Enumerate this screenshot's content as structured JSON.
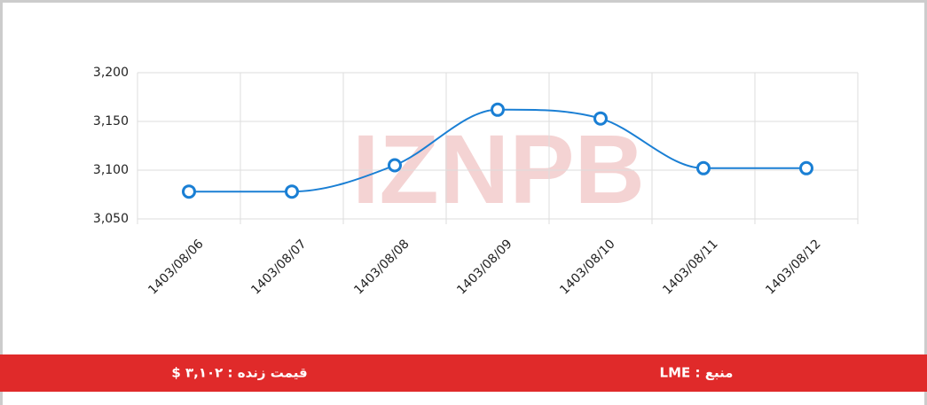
{
  "chart_data": {
    "type": "line",
    "watermark": "IZNPB",
    "categories": [
      "1403/08/06",
      "1403/08/07",
      "1403/08/08",
      "1403/08/09",
      "1403/08/10",
      "1403/08/11",
      "1403/08/12"
    ],
    "series": [
      {
        "color": "#1a7fd4",
        "values": [
          3078,
          3078,
          3105,
          3162,
          3153,
          3102,
          3102
        ]
      }
    ],
    "ylim": [
      3050,
      3200
    ],
    "yticks": [
      {
        "value": 3050,
        "label": "3,050"
      },
      {
        "value": 3100,
        "label": "3,100"
      },
      {
        "value": 3150,
        "label": "3,150"
      },
      {
        "value": 3200,
        "label": "3,200"
      }
    ],
    "grid": true
  },
  "footer": {
    "price": "قیمت زنده : ۳,۱۰۲ $",
    "source": "منبع : LME"
  }
}
